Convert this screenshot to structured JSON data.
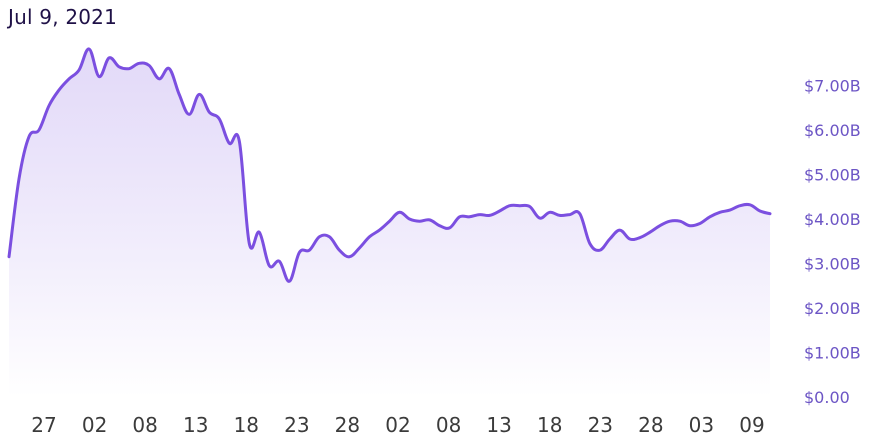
{
  "header": {
    "date": "Jul 9, 2021"
  },
  "colors": {
    "line": "#7b4fe0",
    "fill_top": "#d9cdf6",
    "fill_bottom": "#ffffff",
    "y_label": "#6c55c5",
    "x_label": "#3b3b3b",
    "date_text": "#1f1147"
  },
  "chart_data": {
    "type": "area",
    "title": "",
    "xlabel": "",
    "ylabel": "",
    "grid": false,
    "ylim": [
      0,
      7.4
    ],
    "x_tick_labels": [
      "27",
      "02",
      "08",
      "13",
      "18",
      "23",
      "28",
      "02",
      "08",
      "13",
      "18",
      "23",
      "28",
      "03",
      "09"
    ],
    "y_tick_labels": [
      "$0.00",
      "$1.00B",
      "$2.00B",
      "$3.00B",
      "$4.00B",
      "$5.00B",
      "$6.00B",
      "$7.00B"
    ],
    "y_tick_values": [
      0,
      1,
      2,
      3,
      4,
      5,
      6,
      7
    ],
    "series": [
      {
        "values": [
          3.15,
          4.9,
          5.85,
          6.0,
          6.55,
          6.9,
          7.15,
          7.35,
          7.82,
          7.2,
          7.62,
          7.42,
          7.38,
          7.5,
          7.45,
          7.15,
          7.38,
          6.8,
          6.35,
          6.8,
          6.4,
          6.25,
          5.7,
          5.75,
          3.45,
          3.7,
          2.95,
          3.05,
          2.6,
          3.25,
          3.3,
          3.6,
          3.6,
          3.3,
          3.15,
          3.35,
          3.6,
          3.75,
          3.95,
          4.15,
          4.0,
          3.95,
          3.98,
          3.85,
          3.8,
          4.05,
          4.05,
          4.1,
          4.08,
          4.18,
          4.3,
          4.3,
          4.28,
          4.02,
          4.15,
          4.08,
          4.1,
          4.12,
          3.45,
          3.3,
          3.55,
          3.75,
          3.55,
          3.58,
          3.7,
          3.85,
          3.95,
          3.95,
          3.85,
          3.9,
          4.05,
          4.15,
          4.2,
          4.3,
          4.32,
          4.18,
          4.12
        ]
      }
    ]
  }
}
